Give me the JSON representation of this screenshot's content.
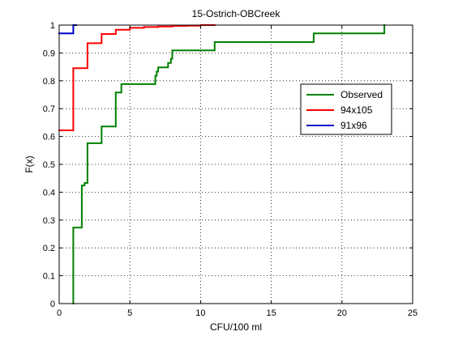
{
  "chart_data": {
    "type": "line",
    "step": true,
    "title": "15-Ostrich-OBCreek",
    "xlabel": "CFU/100 ml",
    "ylabel": "F(x)",
    "xlim": [
      0,
      25
    ],
    "ylim": [
      0,
      1
    ],
    "xticks": [
      0,
      5,
      10,
      15,
      20,
      25
    ],
    "yticks": [
      0,
      0.1,
      0.2,
      0.3,
      0.4,
      0.5,
      0.6,
      0.7,
      0.8,
      0.9,
      1
    ],
    "xtick_labels": [
      "0",
      "5",
      "10",
      "15",
      "20",
      "25"
    ],
    "ytick_labels": [
      "0",
      "0.1",
      "0.2",
      "0.3",
      "0.4",
      "0.5",
      "0.6",
      "0.7",
      "0.8",
      "0.9",
      "1"
    ],
    "grid": true,
    "legend_position": "right",
    "series": [
      {
        "name": "Observed",
        "color": "#008000",
        "x": [
          1,
          1,
          1.6,
          1.6,
          1.8,
          1.8,
          2,
          2,
          3,
          3,
          4,
          4,
          4.4,
          4.4,
          6.8,
          6.8,
          6.9,
          6.9,
          7,
          7,
          7.7,
          7.7,
          7.9,
          7.9,
          8,
          8,
          11,
          11,
          18,
          18,
          23,
          23
        ],
        "y": [
          0,
          0.273,
          0.273,
          0.424,
          0.424,
          0.433,
          0.433,
          0.576,
          0.576,
          0.636,
          0.636,
          0.758,
          0.758,
          0.788,
          0.788,
          0.818,
          0.818,
          0.833,
          0.833,
          0.848,
          0.848,
          0.864,
          0.864,
          0.879,
          0.879,
          0.909,
          0.909,
          0.939,
          0.939,
          0.97,
          0.97,
          1
        ]
      },
      {
        "name": "94x105",
        "color": "#ff0000",
        "x": [
          0,
          1,
          1,
          2,
          2,
          3,
          3,
          4,
          4,
          5,
          5,
          6,
          6,
          7,
          7,
          8,
          8,
          9,
          9,
          10,
          10,
          11
        ],
        "y": [
          0.622,
          0.622,
          0.845,
          0.845,
          0.935,
          0.935,
          0.968,
          0.968,
          0.983,
          0.983,
          0.99,
          0.99,
          0.993,
          0.993,
          0.995,
          0.995,
          0.997,
          0.997,
          0.998,
          0.998,
          1,
          1
        ]
      },
      {
        "name": "91x96",
        "color": "#0000c8",
        "x": [
          0,
          1,
          1,
          1.2
        ],
        "y": [
          0.97,
          0.97,
          1,
          1
        ]
      }
    ]
  }
}
